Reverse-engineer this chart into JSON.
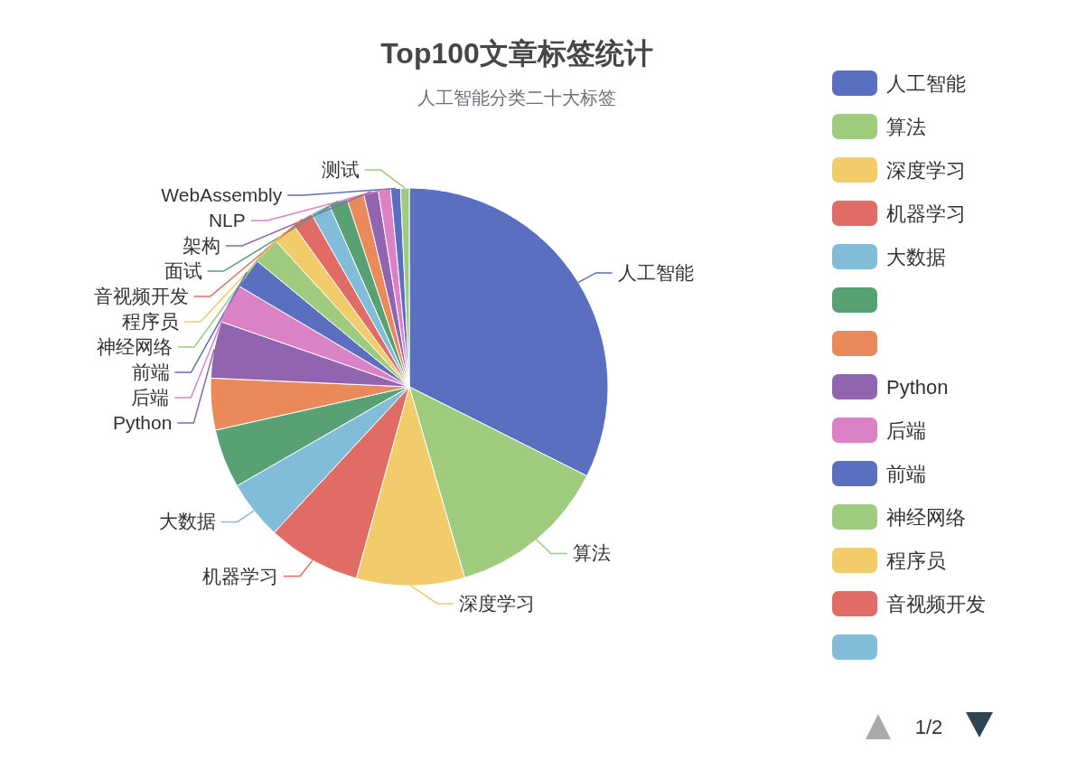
{
  "chart_data": {
    "type": "pie",
    "title": "Top100文章标签统计",
    "subtitle": "人工智能分类二十大标签",
    "categories": [
      "人工智能",
      "算法",
      "深度学习",
      "机器学习",
      "大数据",
      null,
      null,
      "Python",
      "后端",
      "前端",
      "神经网络",
      "程序员",
      "音视频开发",
      null,
      "面试",
      null,
      "架构",
      "NLP",
      "WebAssembly",
      "测试"
    ],
    "values": [
      32.4,
      13.1,
      8.8,
      7.6,
      4.8,
      4.8,
      4.2,
      4.6,
      3.2,
      2.5,
      2.2,
      1.9,
      1.7,
      1.6,
      1.5,
      1.4,
      1.2,
      1.0,
      0.8,
      0.7
    ],
    "colors": [
      "#5a6fc0",
      "#9fcb7e",
      "#f2cb6b",
      "#e16b65",
      "#81bcd9",
      "#57a175",
      "#ea8a5a",
      "#9064ae",
      "#db82c7",
      "#5a6fc0",
      "#9fcb7e",
      "#f2cb6b",
      "#e16b65",
      "#81bcd9",
      "#57a175",
      "#ea8a5a",
      "#9064ae",
      "#db82c7",
      "#5a6fc0",
      "#9fcb7e"
    ],
    "legend": "right",
    "annotations": [
      "1/2"
    ]
  }
}
